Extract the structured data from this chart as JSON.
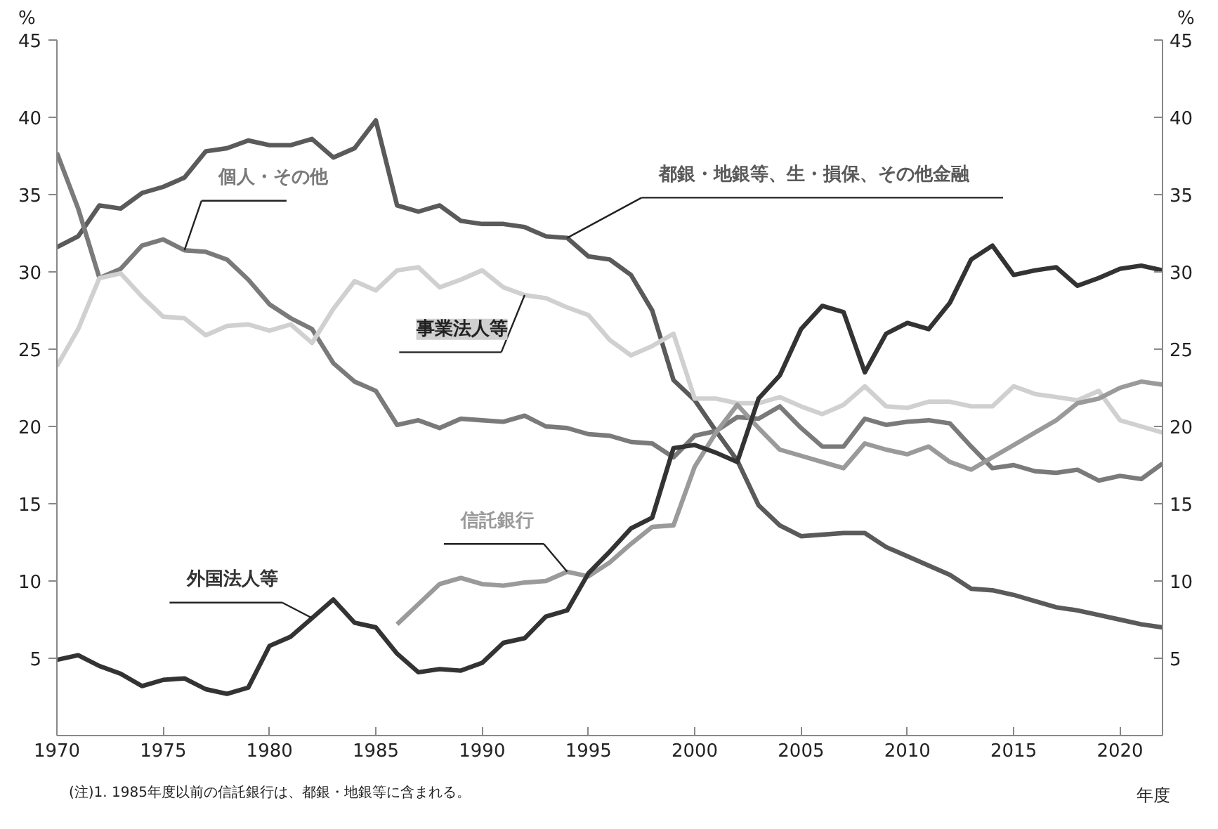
{
  "chart_data": {
    "type": "line",
    "ylabel": "%",
    "y2label": "%",
    "xlabel": "年度",
    "x": [
      1970,
      1971,
      1972,
      1973,
      1974,
      1975,
      1976,
      1977,
      1978,
      1979,
      1980,
      1981,
      1982,
      1983,
      1984,
      1985,
      1986,
      1987,
      1988,
      1989,
      1990,
      1991,
      1992,
      1993,
      1994,
      1995,
      1996,
      1997,
      1998,
      1999,
      2000,
      2001,
      2002,
      2003,
      2004,
      2005,
      2006,
      2007,
      2008,
      2009,
      2010,
      2011,
      2012,
      2013,
      2014,
      2015,
      2016,
      2017,
      2018,
      2019,
      2020,
      2021,
      2022
    ],
    "series": [
      {
        "name": "都銀・地銀等、生・損保、その他金融",
        "color": "#5a5a5a",
        "values": [
          31.6,
          32.3,
          34.3,
          34.1,
          35.1,
          35.5,
          36.1,
          37.8,
          38.0,
          38.5,
          38.2,
          38.2,
          38.6,
          37.4,
          38.0,
          39.8,
          34.3,
          33.9,
          34.3,
          33.3,
          33.1,
          33.1,
          32.9,
          32.3,
          32.2,
          31.0,
          30.8,
          29.8,
          27.5,
          23.0,
          21.7,
          19.7,
          17.8,
          14.9,
          13.6,
          12.9,
          13.0,
          13.1,
          13.1,
          12.2,
          11.6,
          11.0,
          10.4,
          9.5,
          9.4,
          9.1,
          8.7,
          8.3,
          8.1,
          7.8,
          7.5,
          7.2,
          7.0
        ]
      },
      {
        "name": "個人・その他",
        "color": "#7a7a7a",
        "values": [
          37.7,
          34.1,
          29.6,
          30.2,
          31.7,
          32.1,
          31.4,
          31.3,
          30.8,
          29.5,
          27.9,
          27.0,
          26.3,
          24.1,
          22.9,
          22.3,
          20.1,
          20.4,
          19.9,
          20.5,
          20.4,
          20.3,
          20.7,
          20.0,
          19.9,
          19.5,
          19.4,
          19.0,
          18.9,
          18.0,
          19.4,
          19.7,
          20.6,
          20.5,
          21.3,
          19.9,
          18.7,
          18.7,
          20.5,
          20.1,
          20.3,
          20.4,
          20.2,
          18.7,
          17.3,
          17.5,
          17.1,
          17.0,
          17.2,
          16.5,
          16.8,
          16.6,
          17.6
        ]
      },
      {
        "name": "事業法人等",
        "color": "#d0d0d0",
        "values": [
          23.9,
          26.3,
          29.6,
          29.9,
          28.4,
          27.1,
          27.0,
          25.9,
          26.5,
          26.6,
          26.2,
          26.6,
          25.4,
          27.6,
          29.4,
          28.8,
          30.1,
          30.3,
          29.0,
          29.5,
          30.1,
          29.0,
          28.5,
          28.3,
          27.7,
          27.2,
          25.6,
          24.6,
          25.2,
          26.0,
          21.8,
          21.8,
          21.5,
          21.5,
          21.9,
          21.3,
          20.8,
          21.4,
          22.6,
          21.3,
          21.2,
          21.6,
          21.6,
          21.3,
          21.3,
          22.6,
          22.1,
          21.9,
          21.7,
          22.3,
          20.4,
          20.0,
          19.6
        ]
      },
      {
        "name": "信託銀行",
        "color": "#9a9a9a",
        "x": [
          1986,
          1987,
          1988,
          1989,
          1990,
          1991,
          1992,
          1993,
          1994,
          1995,
          1996,
          1997,
          1998,
          1999,
          2000,
          2001,
          2002,
          2003,
          2004,
          2005,
          2006,
          2007,
          2008,
          2009,
          2010,
          2011,
          2012,
          2013,
          2014,
          2015,
          2016,
          2017,
          2018,
          2019,
          2020,
          2021,
          2022
        ],
        "values": [
          7.2,
          8.5,
          9.8,
          10.2,
          9.8,
          9.7,
          9.9,
          10.0,
          10.6,
          10.3,
          11.2,
          12.4,
          13.5,
          13.6,
          17.4,
          19.6,
          21.4,
          19.9,
          18.5,
          18.1,
          17.7,
          17.3,
          18.9,
          18.5,
          18.2,
          18.7,
          17.7,
          17.2,
          18.0,
          18.8,
          19.6,
          20.4,
          21.5,
          21.8,
          22.5,
          22.9,
          22.7
        ]
      },
      {
        "name": "外国法人等",
        "color": "#333333",
        "values": [
          4.9,
          5.2,
          4.5,
          4.0,
          3.2,
          3.6,
          3.7,
          3.0,
          2.7,
          3.1,
          5.8,
          6.4,
          7.6,
          8.8,
          7.3,
          7.0,
          5.3,
          4.1,
          4.3,
          4.2,
          4.7,
          6.0,
          6.3,
          7.7,
          8.1,
          10.5,
          11.9,
          13.4,
          14.1,
          18.6,
          18.8,
          18.3,
          17.7,
          21.8,
          23.3,
          26.3,
          27.8,
          27.4,
          23.5,
          26.0,
          26.7,
          26.3,
          28.0,
          30.8,
          31.7,
          29.8,
          30.1,
          30.3,
          29.1,
          29.6,
          30.2,
          30.4,
          30.1
        ]
      }
    ],
    "xlim": [
      1970,
      2022
    ],
    "xticks": [
      1970,
      1975,
      1980,
      1985,
      1990,
      1995,
      2000,
      2005,
      2010,
      2015,
      2020
    ],
    "ylim": [
      0,
      45
    ],
    "yticks": [
      5,
      10,
      15,
      20,
      25,
      30,
      35,
      40,
      45
    ],
    "y2lim": [
      0,
      45
    ],
    "y2ticks": [
      5,
      10,
      15,
      20,
      25,
      30,
      35,
      40,
      45
    ],
    "annotations": [
      "(注)1. 1985年度以前の信託銀行は、都銀・地銀等に含まれる。"
    ],
    "grid": false,
    "legend": false,
    "marker": "none",
    "line_style": "solid"
  }
}
